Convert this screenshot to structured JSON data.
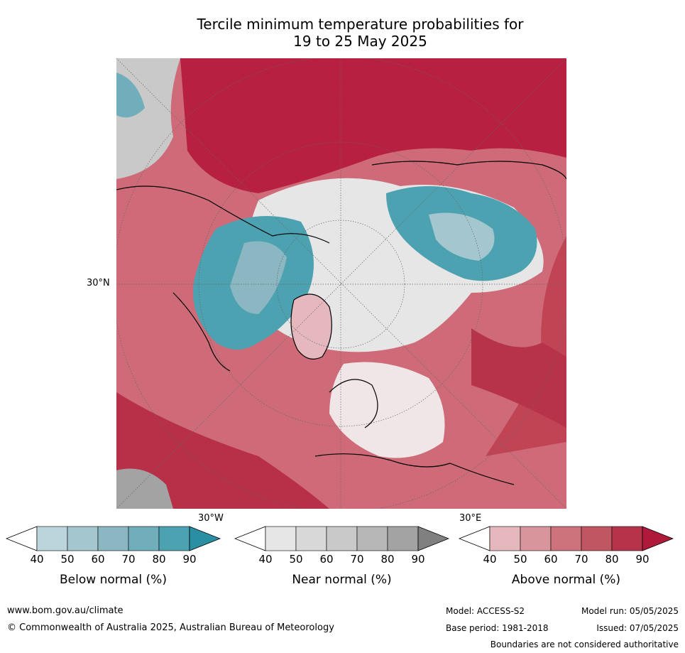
{
  "title_line1": "Tercile minimum temperature probabilities for",
  "title_line2": "19 to 25 May 2025",
  "map": {
    "lat_label": "30°N",
    "lon_label_left": "30°W",
    "lon_label_right": "30°E"
  },
  "colorbars": [
    {
      "title": "Below normal (%)",
      "ticks": [
        "40",
        "50",
        "60",
        "70",
        "80",
        "90"
      ],
      "colors": [
        "#bcd4dc",
        "#a4c6cf",
        "#8bb7c3",
        "#6faeba",
        "#4da2b1",
        "#2a8fa3"
      ]
    },
    {
      "title": "Near normal (%)",
      "ticks": [
        "40",
        "50",
        "60",
        "70",
        "80",
        "90"
      ],
      "colors": [
        "#e6e6e6",
        "#d8d8d8",
        "#c9c9c9",
        "#b7b7b7",
        "#a3a3a3",
        "#808080"
      ]
    },
    {
      "title": "Above normal (%)",
      "ticks": [
        "40",
        "50",
        "60",
        "70",
        "80",
        "90"
      ],
      "colors": [
        "#e5b8bd",
        "#d8959c",
        "#cc737c",
        "#c15663",
        "#b7334a",
        "#b01a3a"
      ]
    }
  ],
  "footer": {
    "website": "www.bom.gov.au/climate",
    "copyright": "© Commonwealth of Australia 2025, Australian Bureau of Meteorology",
    "model": "Model: ACCESS-S2",
    "model_run": "Model run: 05/05/2025",
    "base_period": "Base period: 1981-2018",
    "issued": "Issued: 07/05/2025",
    "disclaimer": "Boundaries are not considered authoritative"
  }
}
